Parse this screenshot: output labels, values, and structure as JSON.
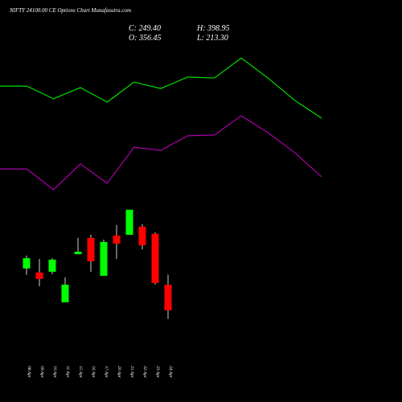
{
  "chart_data": [
    {
      "type": "candlestick",
      "title": "NIFTY 24100.00  CE Options  Chart Munafasutra.com",
      "ohlc_labels": [
        "C: 249.40",
        "H: 398.95",
        "O: 356.45",
        "L: 213.30"
      ],
      "categories": [
        "08 Apr",
        "09 Apr",
        "10 Apr",
        "11 Apr",
        "15 Apr",
        "16 Apr",
        "17 Apr",
        "20 Apr",
        "21 Apr",
        "22 Apr",
        "23 Apr",
        "24 Apr"
      ],
      "open": [
        425,
        408,
        411,
        283,
        485,
        553,
        394,
        563,
        566,
        600,
        570,
        356.45
      ],
      "high": [
        479,
        465,
        468,
        388,
        553,
        566,
        546,
        607,
        671,
        610,
        576,
        398.95
      ],
      "low": [
        398,
        350,
        401,
        283,
        485,
        411,
        394,
        465,
        566,
        505,
        357,
        213.3
      ],
      "close": [
        468,
        381,
        462,
        357,
        495,
        455,
        536,
        529,
        671,
        522,
        364,
        249.4
      ],
      "up_color": "#00ff00",
      "down_color": "#ff0000",
      "ylim": [
        0,
        1550
      ]
    },
    {
      "type": "line",
      "x": [
        0,
        1,
        2,
        3,
        4,
        5,
        6,
        7,
        8,
        9,
        10,
        11,
        12
      ],
      "xlim": [
        0,
        12
      ],
      "ylim": [
        0,
        1550
      ],
      "series": [
        {
          "color": "#00dd00",
          "values": [
            1189,
            1189,
            1136,
            1183,
            1122,
            1206,
            1179,
            1227,
            1223,
            1307,
            1223,
            1129,
            1055
          ]
        },
        {
          "color": "#aa00aa",
          "values": [
            842,
            842,
            755,
            863,
            782,
            933,
            920,
            981,
            984,
            1065,
            994,
            910,
            809
          ]
        }
      ]
    }
  ]
}
